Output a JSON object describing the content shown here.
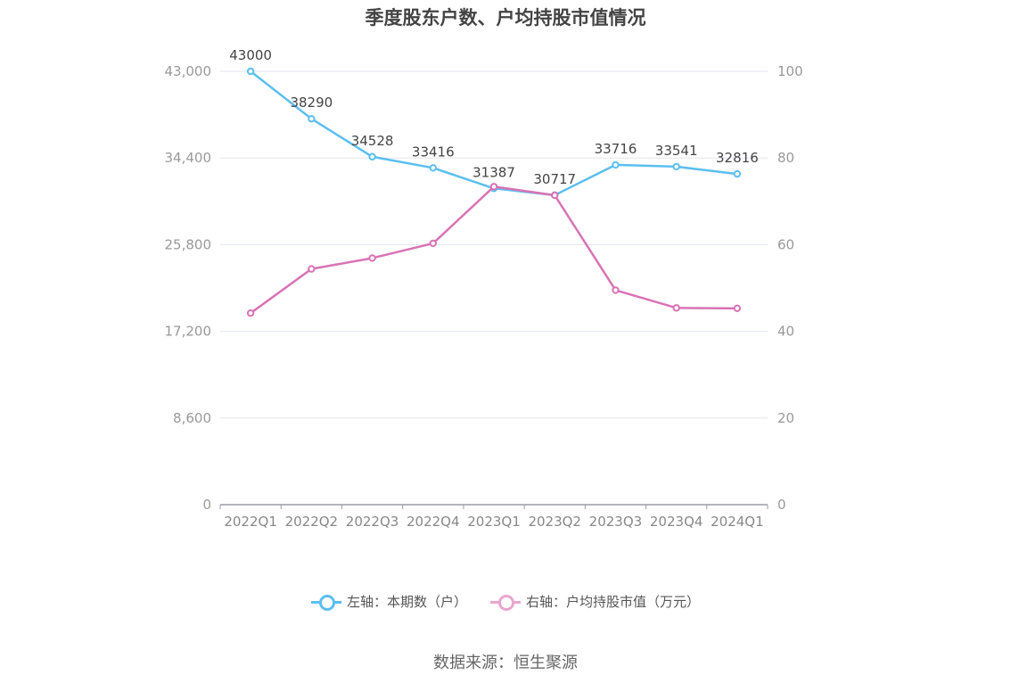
{
  "title": "季度股东户数、户均持股市值情况",
  "source": "数据来源：恒生聚源",
  "colors": {
    "series0": "#5bbff0",
    "series1": "#d873b5",
    "legend1": "#e9a6cf",
    "grid": "#e3e6ef",
    "axis": "#9b9bab"
  },
  "legend": {
    "left": "左轴：本期数（户）",
    "right": "右轴：户均持股市值（万元）"
  },
  "chart_data": {
    "type": "line",
    "categories": [
      "2022Q1",
      "2022Q2",
      "2022Q3",
      "2022Q4",
      "2023Q1",
      "2023Q2",
      "2023Q3",
      "2023Q4",
      "2024Q1"
    ],
    "left_axis": {
      "ylim": [
        0,
        43000
      ],
      "ticks": [
        "0",
        "8,600",
        "17,200",
        "25,800",
        "34,400",
        "43,000"
      ]
    },
    "right_axis": {
      "ylim": [
        0,
        100
      ],
      "ticks": [
        "0",
        "20",
        "40",
        "60",
        "80",
        "100"
      ]
    },
    "series": [
      {
        "name": "左轴：本期数（户）",
        "axis": "left",
        "values": [
          43000,
          38290,
          34528,
          33416,
          31387,
          30717,
          33716,
          33541,
          32816
        ],
        "labels": [
          "43000",
          "38290",
          "34528",
          "33416",
          "31387",
          "30717",
          "33716",
          "33541",
          "32816"
        ]
      },
      {
        "name": "右轴：户均持股市值（万元）",
        "axis": "right",
        "values": [
          44.2,
          54.4,
          56.9,
          60.3,
          73.4,
          71.4,
          49.5,
          45.4,
          45.3
        ]
      }
    ],
    "grid": true,
    "legend_position": "bottom"
  }
}
